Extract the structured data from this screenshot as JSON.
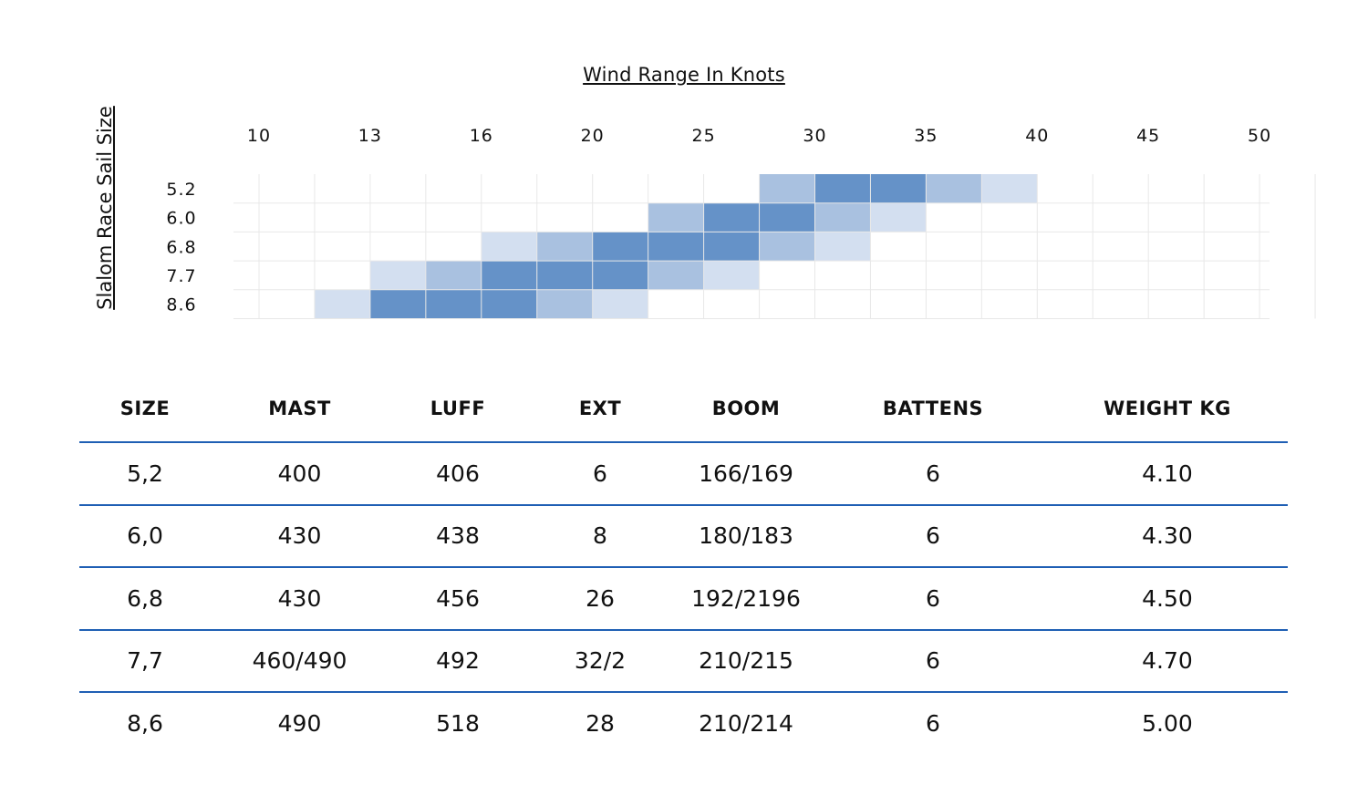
{
  "colors": {
    "strong": "#6592c8",
    "medium": "#a9c1e0",
    "light": "#d3dff0",
    "grid": "#e8e8e8",
    "rule": "#1f5fb4"
  },
  "chart_data": {
    "type": "heatmap",
    "title": "Wind Range In Knots",
    "ylabel": "Slalom Race Sail Size",
    "x_tick_labels": [
      "10",
      "13",
      "16",
      "20",
      "25",
      "30",
      "35",
      "40",
      "45",
      "50"
    ],
    "y_categories": [
      "5.2",
      "6.0",
      "6.8",
      "7.7",
      "8.6"
    ],
    "column_count": 19,
    "intensity_legend": {
      "0": "none",
      "1": "light",
      "2": "medium",
      "3": "strong"
    },
    "rows": [
      {
        "sail": "5.2",
        "cells": [
          0,
          0,
          0,
          0,
          0,
          0,
          0,
          0,
          0,
          2,
          3,
          3,
          2,
          1,
          0,
          0,
          0,
          0,
          0
        ]
      },
      {
        "sail": "6.0",
        "cells": [
          0,
          0,
          0,
          0,
          0,
          0,
          0,
          2,
          3,
          3,
          2,
          1,
          0,
          0,
          0,
          0,
          0,
          0,
          0
        ]
      },
      {
        "sail": "6.8",
        "cells": [
          0,
          0,
          0,
          0,
          1,
          2,
          3,
          3,
          3,
          2,
          1,
          0,
          0,
          0,
          0,
          0,
          0,
          0,
          0
        ]
      },
      {
        "sail": "7.7",
        "cells": [
          0,
          0,
          1,
          2,
          3,
          3,
          3,
          2,
          1,
          0,
          0,
          0,
          0,
          0,
          0,
          0,
          0,
          0,
          0
        ]
      },
      {
        "sail": "8.6",
        "cells": [
          0,
          1,
          3,
          3,
          3,
          2,
          1,
          0,
          0,
          0,
          0,
          0,
          0,
          0,
          0,
          0,
          0,
          0,
          0
        ]
      }
    ]
  },
  "table": {
    "headers": [
      "SIZE",
      "MAST",
      "LUFF",
      "EXT",
      "BOOM",
      "BATTENS",
      "WEIGHT KG"
    ],
    "rows": [
      [
        "5,2",
        "400",
        "406",
        "6",
        "166/169",
        "6",
        "4.10"
      ],
      [
        "6,0",
        "430",
        "438",
        "8",
        "180/183",
        "6",
        "4.30"
      ],
      [
        "6,8",
        "430",
        "456",
        "26",
        "192/2196",
        "6",
        "4.50"
      ],
      [
        "7,7",
        "460/490",
        "492",
        "32/2",
        "210/215",
        "6",
        "4.70"
      ],
      [
        "8,6",
        "490",
        "518",
        "28",
        "210/214",
        "6",
        "5.00"
      ]
    ]
  }
}
